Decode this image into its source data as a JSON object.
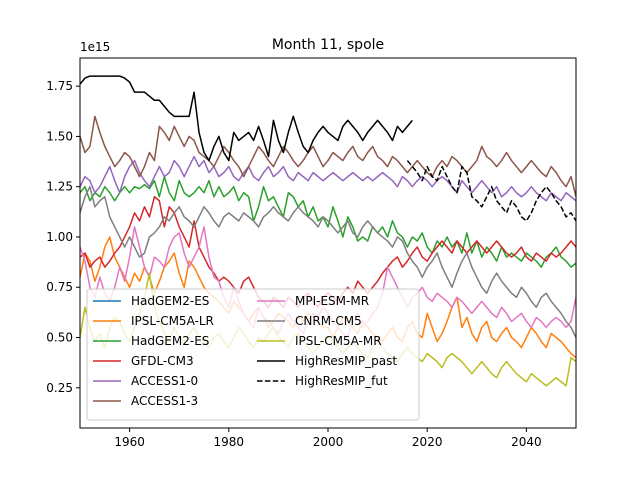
{
  "chart_data": {
    "type": "line",
    "title": "Month 11, spole",
    "y_offset_label": "1e15",
    "xlabel": "",
    "ylabel": "",
    "xlim": [
      1950,
      2050
    ],
    "ylim": [
      0.05,
      1.89
    ],
    "x_ticks": [
      1960,
      1980,
      2000,
      2020,
      2040
    ],
    "x_tick_labels": [
      "1960",
      "1980",
      "2000",
      "2020",
      "2040"
    ],
    "y_ticks": [
      0.25,
      0.5,
      0.75,
      1.0,
      1.25,
      1.5,
      1.75
    ],
    "y_tick_labels": [
      "0.25",
      "0.50",
      "0.75",
      "1.00",
      "1.25",
      "1.50",
      "1.75"
    ],
    "legend_placement": "lower-left",
    "series": [
      {
        "name": "HadGEM2-ES",
        "color": "#1f77b4",
        "dash": "solid",
        "x_start": 1950,
        "values": []
      },
      {
        "name": "IPSL-CM5A-LR",
        "color": "#ff7f0e",
        "dash": "solid",
        "x_start": 1950,
        "values": [
          0.8,
          0.92,
          0.88,
          0.78,
          0.85,
          0.95,
          1.0,
          0.9,
          0.85,
          0.8,
          0.75,
          0.82,
          0.78,
          0.85,
          0.8,
          0.72,
          0.78,
          0.85,
          0.88,
          0.92,
          0.82,
          0.75,
          0.88,
          0.85,
          0.8,
          0.75,
          0.72,
          0.7,
          0.68,
          0.65,
          0.62,
          0.68,
          0.65,
          0.62,
          0.58,
          0.62,
          0.65,
          0.6,
          0.55,
          0.58,
          0.62,
          0.6,
          0.58,
          0.55,
          0.6,
          0.58,
          0.62,
          0.6,
          0.58,
          0.55,
          0.55,
          0.5,
          0.55,
          0.6,
          0.58,
          0.55,
          0.52,
          0.58,
          0.55,
          0.52,
          0.5,
          0.48,
          0.52,
          0.55,
          0.5,
          0.48,
          0.55,
          0.58,
          0.52,
          0.5,
          0.62,
          0.55,
          0.48,
          0.52,
          0.58,
          0.65,
          0.7,
          0.55,
          0.6,
          0.52,
          0.48,
          0.55,
          0.58,
          0.5,
          0.48,
          0.52,
          0.55,
          0.5,
          0.48,
          0.45,
          0.5,
          0.55,
          0.52,
          0.48,
          0.45,
          0.52,
          0.5,
          0.48,
          0.45,
          0.42,
          0.4
        ]
      },
      {
        "name": "HadGEM2-ES",
        "color": "#2ca02c",
        "dash": "solid",
        "x_start": 1950,
        "values": [
          1.22,
          1.25,
          1.18,
          1.22,
          1.2,
          1.25,
          1.22,
          1.18,
          1.22,
          1.25,
          1.22,
          1.25,
          1.24,
          1.26,
          1.24,
          1.28,
          1.2,
          1.3,
          1.22,
          1.18,
          1.28,
          1.22,
          1.2,
          1.22,
          1.25,
          1.22,
          1.28,
          1.2,
          1.25,
          1.2,
          1.22,
          1.25,
          1.18,
          1.22,
          1.2,
          1.08,
          1.15,
          1.25,
          1.18,
          1.2,
          1.15,
          1.1,
          1.22,
          1.2,
          1.15,
          1.18,
          1.1,
          1.15,
          1.08,
          1.1,
          1.05,
          1.15,
          1.08,
          1.0,
          1.1,
          1.05,
          0.98,
          1.0,
          0.98,
          1.05,
          1.02,
          1.05,
          1.0,
          1.08,
          1.02,
          1.0,
          0.95,
          1.0,
          0.98,
          1.02,
          0.95,
          0.92,
          0.98,
          0.95,
          1.0,
          0.95,
          0.98,
          0.92,
          1.02,
          0.92,
          0.98,
          0.9,
          0.95,
          0.92,
          0.88,
          0.95,
          0.9,
          0.92,
          0.9,
          0.88,
          0.92,
          0.9,
          0.88,
          0.85,
          0.9,
          0.92,
          0.95,
          0.9,
          0.88,
          0.85,
          0.87
        ]
      },
      {
        "name": "GFDL-CM3",
        "color": "#d62728",
        "dash": "solid",
        "x_start": 1950,
        "values": [
          0.9,
          0.92,
          0.85,
          0.88,
          0.9,
          0.85,
          0.88,
          0.92,
          0.95,
          1.0,
          1.05,
          1.12,
          1.08,
          1.15,
          1.1,
          1.2,
          1.18,
          1.05,
          1.15,
          1.12,
          1.05,
          1.0,
          0.95,
          1.08,
          0.95,
          0.9,
          0.85,
          0.82,
          0.78,
          0.8,
          0.78,
          0.75,
          0.72,
          0.78,
          0.8,
          0.75,
          0.7,
          0.68,
          0.65,
          0.7,
          0.68,
          0.65,
          0.7,
          0.68,
          0.65,
          0.7,
          0.72,
          0.68,
          0.65,
          0.7,
          0.72,
          0.7,
          0.68,
          0.72,
          0.75,
          0.72,
          0.78,
          0.75,
          0.72,
          0.75,
          0.78,
          0.82,
          0.85,
          0.88,
          0.9,
          0.85,
          0.88,
          0.92,
          0.95,
          0.9,
          0.88,
          0.92,
          0.95,
          0.98,
          0.95,
          0.92,
          0.98,
          0.95,
          0.92,
          0.95,
          0.98,
          0.95,
          0.92,
          0.95,
          0.98,
          0.95,
          0.92,
          0.9,
          0.92,
          0.95,
          0.9,
          0.88,
          0.92,
          0.9,
          0.88,
          0.92,
          0.9,
          0.92,
          0.95,
          0.98,
          0.95
        ]
      },
      {
        "name": "ACCESS1-0",
        "color": "#9467bd",
        "dash": "solid",
        "x_start": 1950,
        "values": [
          1.25,
          1.3,
          1.28,
          1.22,
          1.25,
          1.3,
          1.35,
          1.28,
          1.22,
          1.3,
          1.35,
          1.38,
          1.32,
          1.28,
          1.25,
          1.3,
          1.35,
          1.3,
          1.32,
          1.38,
          1.35,
          1.3,
          1.35,
          1.4,
          1.35,
          1.38,
          1.32,
          1.35,
          1.3,
          1.32,
          1.35,
          1.3,
          1.28,
          1.32,
          1.35,
          1.3,
          1.28,
          1.32,
          1.35,
          1.3,
          1.32,
          1.35,
          1.3,
          1.28,
          1.32,
          1.3,
          1.28,
          1.32,
          1.3,
          1.28,
          1.3,
          1.32,
          1.3,
          1.28,
          1.3,
          1.32,
          1.3,
          1.28,
          1.3,
          1.28,
          1.3,
          1.32,
          1.3,
          1.28,
          1.25,
          1.3,
          1.28,
          1.25,
          1.28,
          1.3,
          1.28,
          1.25,
          1.28,
          1.3,
          1.28,
          1.25,
          1.22,
          1.28,
          1.25,
          1.22,
          1.25,
          1.28,
          1.25,
          1.22,
          1.25,
          1.2,
          1.22,
          1.25,
          1.22,
          1.2,
          1.22,
          1.25,
          1.22,
          1.2,
          1.18,
          1.22,
          1.2,
          1.18,
          1.22,
          1.2,
          1.18
        ]
      },
      {
        "name": "ACCESS1-3",
        "color": "#8c564b",
        "dash": "solid",
        "x_start": 1950,
        "values": [
          1.5,
          1.42,
          1.45,
          1.6,
          1.52,
          1.45,
          1.4,
          1.35,
          1.38,
          1.42,
          1.4,
          1.35,
          1.3,
          1.35,
          1.42,
          1.38,
          1.55,
          1.52,
          1.48,
          1.55,
          1.5,
          1.45,
          1.5,
          1.48,
          1.42,
          1.4,
          1.38,
          1.35,
          1.4,
          1.45,
          1.42,
          1.38,
          1.35,
          1.3,
          1.35,
          1.4,
          1.45,
          1.42,
          1.38,
          1.35,
          1.4,
          1.45,
          1.42,
          1.38,
          1.35,
          1.38,
          1.42,
          1.45,
          1.4,
          1.35,
          1.38,
          1.42,
          1.4,
          1.38,
          1.42,
          1.45,
          1.4,
          1.38,
          1.42,
          1.45,
          1.4,
          1.38,
          1.35,
          1.4,
          1.38,
          1.35,
          1.32,
          1.35,
          1.38,
          1.35,
          1.32,
          1.3,
          1.35,
          1.38,
          1.35,
          1.4,
          1.38,
          1.35,
          1.32,
          1.35,
          1.38,
          1.45,
          1.4,
          1.38,
          1.35,
          1.38,
          1.42,
          1.38,
          1.35,
          1.32,
          1.35,
          1.38,
          1.35,
          1.32,
          1.3,
          1.35,
          1.32,
          1.28,
          1.25,
          1.3,
          1.2
        ]
      },
      {
        "name": "MPI-ESM-MR",
        "color": "#e377c2",
        "dash": "solid",
        "x_start": 1950,
        "values": [
          0.95,
          0.88,
          0.75,
          0.7,
          0.8,
          0.72,
          0.68,
          0.75,
          0.85,
          0.78,
          0.9,
          1.05,
          0.95,
          0.85,
          0.8,
          0.9,
          0.88,
          0.85,
          0.95,
          1.0,
          1.02,
          0.92,
          0.85,
          0.9,
          0.95,
          1.05,
          0.9,
          0.8,
          0.78,
          0.7,
          0.65,
          0.75,
          0.68,
          0.62,
          0.58,
          0.55,
          0.65,
          0.6,
          0.58,
          0.55,
          0.52,
          0.58,
          0.62,
          0.58,
          0.55,
          0.52,
          0.58,
          0.62,
          0.6,
          0.65,
          0.62,
          0.58,
          0.55,
          0.52,
          0.5,
          0.58,
          0.62,
          0.55,
          0.58,
          0.62,
          0.65,
          0.72,
          0.85,
          0.8,
          0.75,
          0.7,
          0.65,
          0.7,
          0.72,
          0.75,
          0.7,
          0.68,
          0.72,
          0.7,
          0.68,
          0.65,
          0.7,
          0.68,
          0.65,
          0.62,
          0.65,
          0.68,
          0.65,
          0.62,
          0.6,
          0.65,
          0.62,
          0.58,
          0.6,
          0.62,
          0.58,
          0.55,
          0.6,
          0.58,
          0.55,
          0.58,
          0.6,
          0.58,
          0.55,
          0.58,
          0.7
        ]
      },
      {
        "name": "CNRM-CM5",
        "color": "#7f7f7f",
        "dash": "solid",
        "x_start": 1950,
        "values": [
          1.12,
          1.2,
          1.25,
          1.15,
          1.18,
          1.2,
          1.1,
          1.05,
          1.0,
          0.95,
          1.0,
          0.95,
          0.9,
          0.92,
          1.0,
          1.02,
          1.05,
          1.1,
          1.08,
          1.12,
          1.15,
          1.1,
          1.08,
          1.05,
          1.1,
          1.15,
          1.12,
          1.08,
          1.05,
          1.1,
          1.12,
          1.1,
          1.08,
          1.12,
          1.1,
          1.08,
          1.05,
          1.1,
          1.12,
          1.15,
          1.12,
          1.1,
          1.08,
          1.12,
          1.15,
          1.12,
          1.1,
          1.08,
          1.05,
          1.1,
          1.08,
          1.05,
          1.02,
          1.05,
          1.08,
          1.02,
          1.0,
          1.05,
          1.08,
          1.05,
          1.02,
          1.0,
          0.98,
          0.95,
          1.0,
          0.98,
          0.92,
          0.88,
          0.85,
          0.8,
          0.85,
          0.88,
          0.92,
          0.85,
          0.8,
          0.75,
          0.82,
          0.88,
          0.92,
          0.85,
          0.8,
          0.75,
          0.72,
          0.78,
          0.82,
          0.78,
          0.75,
          0.72,
          0.7,
          0.75,
          0.72,
          0.68,
          0.65,
          0.7,
          0.72,
          0.68,
          0.65,
          0.62,
          0.58,
          0.55,
          0.5
        ]
      },
      {
        "name": "IPSL-CM5A-MR",
        "color": "#bcbd22",
        "dash": "solid",
        "x_start": 1950,
        "values": [
          0.5,
          0.65,
          0.55,
          0.48,
          0.52,
          0.45,
          0.55,
          0.6,
          0.58,
          0.52,
          0.48,
          0.55,
          0.62,
          0.7,
          0.82,
          0.65,
          0.58,
          0.52,
          0.48,
          0.55,
          0.5,
          0.48,
          0.52,
          0.55,
          0.5,
          0.48,
          0.45,
          0.5,
          0.52,
          0.48,
          0.45,
          0.5,
          0.55,
          0.52,
          0.48,
          0.45,
          0.5,
          0.48,
          0.52,
          0.55,
          0.5,
          0.48,
          0.45,
          0.5,
          0.52,
          0.48,
          0.45,
          0.42,
          0.45,
          0.48,
          0.5,
          0.48,
          0.45,
          0.42,
          0.45,
          0.48,
          0.45,
          0.42,
          0.4,
          0.45,
          0.48,
          0.45,
          0.42,
          0.4,
          0.38,
          0.42,
          0.45,
          0.42,
          0.4,
          0.38,
          0.42,
          0.4,
          0.38,
          0.35,
          0.4,
          0.42,
          0.4,
          0.38,
          0.35,
          0.32,
          0.35,
          0.38,
          0.35,
          0.32,
          0.3,
          0.35,
          0.38,
          0.35,
          0.32,
          0.3,
          0.28,
          0.32,
          0.3,
          0.28,
          0.26,
          0.28,
          0.3,
          0.28,
          0.26,
          0.4,
          0.38
        ]
      },
      {
        "name": "HighResMIP_past",
        "color": "#000000",
        "dash": "solid",
        "x_start": 1950,
        "values": [
          1.76,
          1.79,
          1.8,
          1.8,
          1.8,
          1.8,
          1.8,
          1.8,
          1.8,
          1.79,
          1.77,
          1.72,
          1.72,
          1.72,
          1.7,
          1.68,
          1.68,
          1.65,
          1.62,
          1.6,
          1.6,
          1.6,
          1.6,
          1.72,
          1.52,
          1.42,
          1.38,
          1.45,
          1.5,
          1.42,
          1.38,
          1.52,
          1.48,
          1.5,
          1.52,
          1.48,
          1.55,
          1.48,
          1.4,
          1.58,
          1.48,
          1.42,
          1.52,
          1.6,
          1.52,
          1.45,
          1.42,
          1.48,
          1.52,
          1.55,
          1.52,
          1.5,
          1.48,
          1.55,
          1.58,
          1.55,
          1.52,
          1.48,
          1.52,
          1.55,
          1.58,
          1.55,
          1.52,
          1.48,
          1.55,
          1.52,
          1.55,
          1.58
        ]
      },
      {
        "name": "HighResMIP_fut",
        "color": "#000000",
        "dash": "dashed",
        "x_start": 2016,
        "values": [
          1.38,
          1.35,
          1.32,
          1.28,
          1.35,
          1.3,
          1.28,
          1.35,
          1.3,
          1.25,
          1.22,
          1.35,
          1.32,
          1.2,
          1.18,
          1.15,
          1.2,
          1.25,
          1.18,
          1.15,
          1.12,
          1.18,
          1.15,
          1.1,
          1.08,
          1.12,
          1.18,
          1.22,
          1.25,
          1.22,
          1.18,
          1.15,
          1.1,
          1.12,
          1.08,
          1.05,
          1.1,
          1.08,
          1.05,
          1.02,
          1.05,
          1.08,
          1.1,
          1.08,
          1.05,
          1.02,
          1.0,
          1.02,
          1.05,
          1.08,
          1.05,
          1.02,
          1.0,
          1.02,
          1.05,
          1.08,
          1.05,
          1.08,
          1.05,
          1.02,
          1.0,
          1.05,
          1.02,
          1.0,
          1.03,
          1.05,
          1.08,
          1.05,
          1.1,
          1.05,
          1.02,
          1.05,
          1.02,
          1.05,
          1.08,
          1.05,
          1.02,
          1.05,
          1.08,
          1.05,
          1.02,
          1.05,
          1.08
        ]
      }
    ]
  }
}
